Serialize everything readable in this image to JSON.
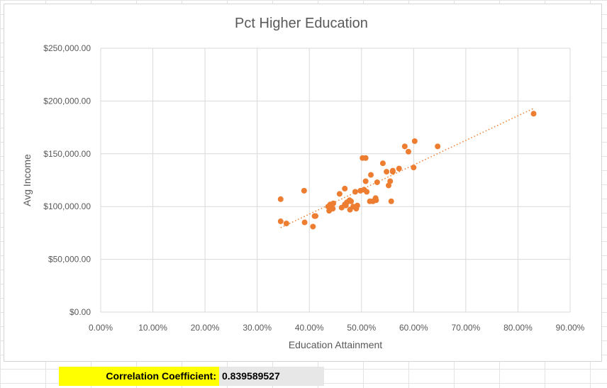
{
  "chart_data": {
    "type": "scatter",
    "title": "Pct Higher Education",
    "xlabel": "Education Attainment",
    "ylabel": "Avg Income",
    "xlim": [
      0,
      0.9
    ],
    "ylim": [
      0,
      250000
    ],
    "x_ticks": [
      0,
      0.1,
      0.2,
      0.3,
      0.4,
      0.5,
      0.6,
      0.7,
      0.8,
      0.9
    ],
    "x_tick_labels": [
      "0.00%",
      "10.00%",
      "20.00%",
      "30.00%",
      "40.00%",
      "50.00%",
      "60.00%",
      "70.00%",
      "80.00%",
      "90.00%"
    ],
    "y_ticks": [
      0,
      50000,
      100000,
      150000,
      200000,
      250000
    ],
    "y_tick_labels": [
      "$0.00",
      "$50,000.00",
      "$100,000.00",
      "$150,000.00",
      "$200,000.00",
      "$250,000.00"
    ],
    "grid": true,
    "marker_color": "#ED7D31",
    "trendline": {
      "type": "linear",
      "style": "dotted",
      "color": "#ED7D31",
      "x": [
        0.345,
        0.83
      ],
      "y": [
        80000,
        193000
      ]
    },
    "x": [
      0.345,
      0.345,
      0.356,
      0.39,
      0.391,
      0.407,
      0.41,
      0.412,
      0.436,
      0.438,
      0.44,
      0.445,
      0.446,
      0.458,
      0.462,
      0.468,
      0.468,
      0.47,
      0.472,
      0.477,
      0.478,
      0.48,
      0.484,
      0.488,
      0.49,
      0.492,
      0.498,
      0.502,
      0.505,
      0.508,
      0.508,
      0.51,
      0.516,
      0.518,
      0.522,
      0.527,
      0.528,
      0.53,
      0.541,
      0.548,
      0.552,
      0.555,
      0.557,
      0.56,
      0.56,
      0.572,
      0.583,
      0.59,
      0.6,
      0.602,
      0.646,
      0.83
    ],
    "y": [
      107000,
      86000,
      84000,
      115000,
      85000,
      81000,
      91000,
      91000,
      100000,
      96000,
      102000,
      98000,
      103000,
      112000,
      99000,
      117000,
      102000,
      101000,
      104000,
      106000,
      97000,
      105000,
      100000,
      114000,
      98000,
      101000,
      115000,
      146000,
      116000,
      124000,
      146000,
      114000,
      105000,
      130000,
      105000,
      108000,
      106000,
      123000,
      141000,
      133000,
      120000,
      124000,
      105000,
      134000,
      133000,
      136000,
      157000,
      152000,
      137000,
      162000,
      157000,
      188000
    ]
  },
  "stats": {
    "correlation_label": "Correlation Coefficient:",
    "correlation_value": "0.839589527",
    "label_bg": "#FFFF00",
    "value_bg": "#E7E7E7"
  }
}
